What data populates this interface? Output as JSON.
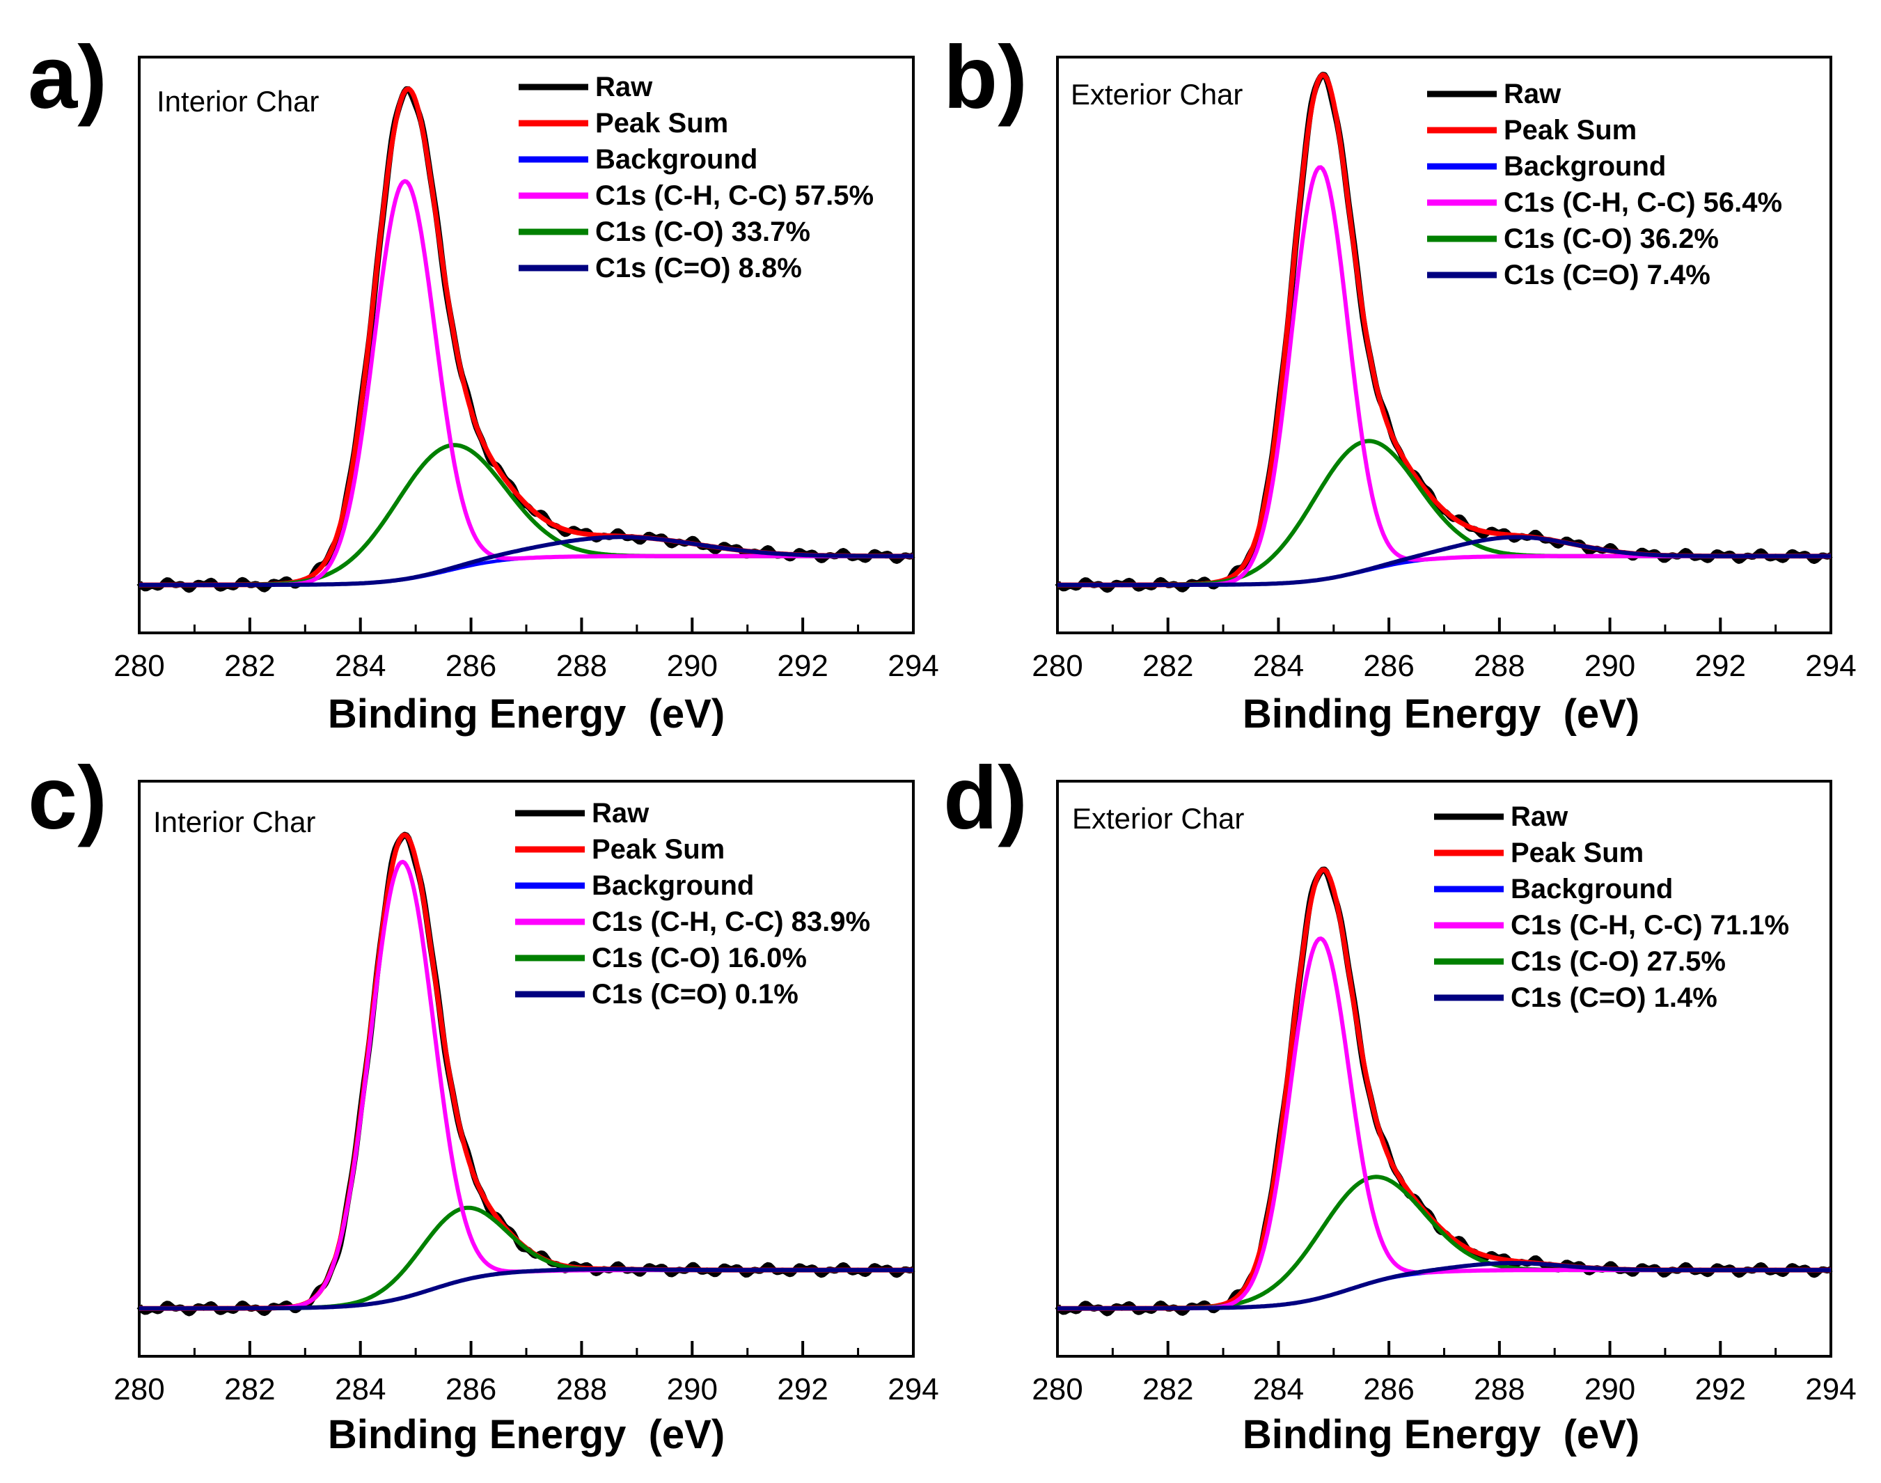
{
  "figure": {
    "colors": {
      "raw": "#000000",
      "peak_sum": "#ff0000",
      "background": "#0000ff",
      "ch_cc": "#ff00ff",
      "co": "#008000",
      "c_double_o": "#000080"
    }
  },
  "chart_data": [
    {
      "panel": "a)",
      "type": "line",
      "title": "Interior Char",
      "xlabel": "Binding Energy  (eV)",
      "ylabel": "",
      "xlim": [
        280,
        294
      ],
      "ylim": [
        -0.1,
        1.1
      ],
      "xticks": [
        "280",
        "282",
        "284",
        "286",
        "288",
        "290",
        "292",
        "294"
      ],
      "legend": [
        "Raw",
        "Peak Sum",
        "Background",
        "C1s (C-H, C-C) 57.5%",
        "C1s (C-O) 33.7%",
        "C1s (C=O) 8.8%"
      ],
      "model": {
        "bg_low": 0.0,
        "bg_high": 0.06,
        "bg_center": 285.6,
        "components": [
          {
            "name": "C-H, C-C",
            "center": 284.8,
            "height": 0.83,
            "fwhm": 1.3
          },
          {
            "name": "C-O",
            "center": 285.6,
            "height": 0.26,
            "fwhm": 2.3
          },
          {
            "name": "C=O",
            "center": 288.7,
            "height": 0.04,
            "fwhm": 3.3
          }
        ]
      }
    },
    {
      "panel": "b)",
      "type": "line",
      "title": "Exterior Char",
      "xlabel": "Binding Energy  (eV)",
      "ylabel": "",
      "xlim": [
        280,
        294
      ],
      "ylim": [
        -0.1,
        1.1
      ],
      "xticks": [
        "280",
        "282",
        "284",
        "286",
        "288",
        "290",
        "292",
        "294"
      ],
      "legend": [
        "Raw",
        "Peak Sum",
        "Background",
        "C1s (C-H, C-C) 56.4%",
        "C1s (C-O) 36.2%",
        "C1s (C=O) 7.4%"
      ],
      "model": {
        "bg_low": 0.0,
        "bg_high": 0.06,
        "bg_center": 285.6,
        "components": [
          {
            "name": "C-H, C-C",
            "center": 284.75,
            "height": 0.86,
            "fwhm": 1.2
          },
          {
            "name": "C-O",
            "center": 285.55,
            "height": 0.27,
            "fwhm": 2.2
          },
          {
            "name": "C=O",
            "center": 288.3,
            "height": 0.04,
            "fwhm": 2.5
          }
        ]
      }
    },
    {
      "panel": "c)",
      "type": "line",
      "title": "Interior Char",
      "xlabel": "Binding Energy  (eV)",
      "ylabel": "",
      "xlim": [
        280,
        294
      ],
      "ylim": [
        -0.1,
        1.1
      ],
      "xticks": [
        "280",
        "282",
        "284",
        "286",
        "288",
        "290",
        "292",
        "294"
      ],
      "legend": [
        "Raw",
        "Peak Sum",
        "Background",
        "C1s (C-H, C-C) 83.9%",
        "C1s (C-O) 16.0%",
        "C1s (C=O) 0.1%"
      ],
      "model": {
        "bg_low": 0.0,
        "bg_high": 0.08,
        "bg_center": 285.3,
        "components": [
          {
            "name": "C-H, C-C",
            "center": 284.75,
            "height": 0.91,
            "fwhm": 1.35
          },
          {
            "name": "C-O",
            "center": 285.85,
            "height": 0.15,
            "fwhm": 1.8
          },
          {
            "name": "C=O",
            "center": 288.3,
            "height": 0.002,
            "fwhm": 2.0
          }
        ]
      }
    },
    {
      "panel": "d)",
      "type": "line",
      "title": "Exterior Char",
      "xlabel": "Binding Energy  (eV)",
      "ylabel": "",
      "xlim": [
        280,
        294
      ],
      "ylim": [
        -0.1,
        1.1
      ],
      "xticks": [
        "280",
        "282",
        "284",
        "286",
        "288",
        "290",
        "292",
        "294"
      ],
      "legend": [
        "Raw",
        "Peak Sum",
        "Background",
        "C1s (C-H, C-C) 71.1%",
        "C1s (C-O) 27.5%",
        "C1s (C=O) 1.4%"
      ],
      "model": {
        "bg_low": 0.0,
        "bg_high": 0.08,
        "bg_center": 285.3,
        "components": [
          {
            "name": "C-H, C-C",
            "center": 284.75,
            "height": 0.75,
            "fwhm": 1.25
          },
          {
            "name": "C-O",
            "center": 285.65,
            "height": 0.22,
            "fwhm": 2.2
          },
          {
            "name": "C=O",
            "center": 288.2,
            "height": 0.015,
            "fwhm": 2.2
          }
        ]
      }
    }
  ]
}
